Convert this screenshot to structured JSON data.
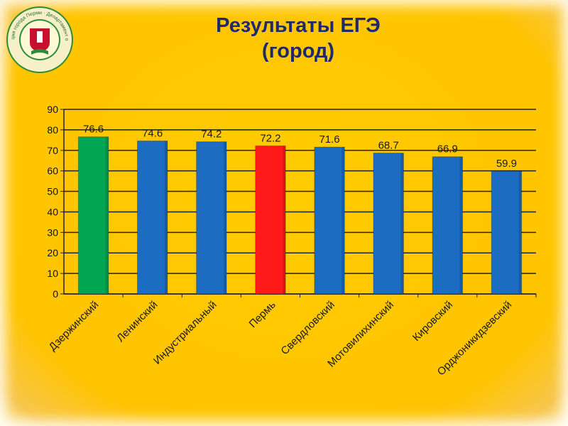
{
  "slide": {
    "title_line1": "Результаты ЕГЭ",
    "title_line2": "(город)"
  },
  "colors": {
    "background": "#ffc400",
    "title": "#1f2a6b",
    "default_bar": "#1c6cc2",
    "highlight_green": "#00a651",
    "highlight_red": "#ff1a1a"
  },
  "logo": {
    "icon": "emblem-seal-icon",
    "text": "Администрация города Перми · Департамент образования"
  },
  "chart_data": {
    "type": "bar",
    "categories": [
      "Дзержинский",
      "Ленинский",
      "Индустриальный",
      "Пермь",
      "Свердловский",
      "Мотовилихинский",
      "Кировский",
      "Орджоникидзевский"
    ],
    "values": [
      76.6,
      74.6,
      74.2,
      72.2,
      71.6,
      68.7,
      66.9,
      59.9
    ],
    "value_labels": [
      "76.6",
      "74.6",
      "74.2",
      "72.2",
      "71.6",
      "68.7",
      "66.9",
      "59.9"
    ],
    "bar_colors": [
      "#00a651",
      "#1c6cc2",
      "#1c6cc2",
      "#ff1a1a",
      "#1c6cc2",
      "#1c6cc2",
      "#1c6cc2",
      "#1c6cc2"
    ],
    "title": "",
    "xlabel": "",
    "ylabel": "",
    "ylim": [
      0,
      90
    ],
    "yticks": [
      "0",
      "10",
      "20",
      "30",
      "40",
      "50",
      "60",
      "70",
      "80",
      "90"
    ],
    "grid": true,
    "legend": "none"
  }
}
